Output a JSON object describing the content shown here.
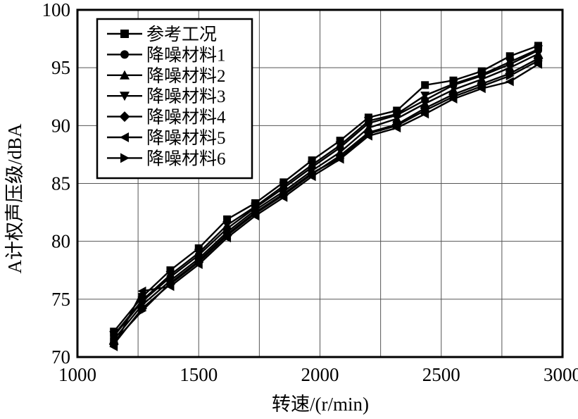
{
  "figure": {
    "background": "#ffffff",
    "ink_color": "#000000",
    "grid_color": "#555555"
  },
  "chart_data": {
    "type": "line",
    "title": "",
    "xlabel": "转速/(r/min)",
    "ylabel": "A计权声压级/dBA",
    "xlim": [
      1000,
      3000
    ],
    "ylim": [
      70,
      100
    ],
    "x_tick_labels": [
      1000,
      1500,
      2000,
      2500,
      3000
    ],
    "x_gridlines": [
      1250,
      1500,
      1750,
      2000,
      2250,
      2500,
      2750
    ],
    "y_ticks": [
      70,
      75,
      80,
      85,
      90,
      95,
      100
    ],
    "grid": "on",
    "legend_position": "top-left-inside",
    "x": [
      1150,
      1267,
      1383,
      1500,
      1617,
      1733,
      1850,
      1967,
      2083,
      2200,
      2317,
      2433,
      2550,
      2667,
      2783,
      2900
    ],
    "series": [
      {
        "name": "参考工况",
        "marker": "square",
        "values": [
          72.2,
          75.2,
          77.5,
          79.4,
          81.9,
          83.3,
          85.1,
          87.0,
          88.7,
          90.7,
          91.3,
          93.5,
          93.9,
          94.7,
          96.0,
          96.9
        ]
      },
      {
        "name": "降噪材料1",
        "marker": "circle",
        "values": [
          71.8,
          74.8,
          76.9,
          78.8,
          81.1,
          82.9,
          84.6,
          86.4,
          88.1,
          90.2,
          90.9,
          92.2,
          93.5,
          94.3,
          95.3,
          96.5
        ]
      },
      {
        "name": "降噪材料2",
        "marker": "triangle-up",
        "values": [
          71.5,
          74.5,
          76.6,
          78.5,
          80.8,
          82.7,
          84.3,
          86.1,
          87.7,
          89.8,
          90.6,
          91.9,
          93.1,
          94.0,
          95.0,
          96.2
        ]
      },
      {
        "name": "降噪材料3",
        "marker": "triangle-down",
        "values": [
          71.9,
          74.9,
          77.1,
          79.0,
          81.4,
          83.0,
          84.8,
          86.6,
          88.3,
          90.4,
          91.0,
          92.6,
          93.6,
          94.4,
          95.5,
          96.6
        ]
      },
      {
        "name": "降噪材料4",
        "marker": "diamond",
        "values": [
          71.1,
          74.2,
          76.3,
          78.2,
          80.5,
          82.4,
          84.0,
          85.8,
          87.4,
          89.4,
          90.1,
          91.5,
          92.7,
          93.6,
          94.5,
          95.8
        ]
      },
      {
        "name": "降噪材料5",
        "marker": "triangle-left",
        "values": [
          70.9,
          75.7,
          76.1,
          78.0,
          80.3,
          82.2,
          83.8,
          85.6,
          87.1,
          89.1,
          89.8,
          91.0,
          92.3,
          93.2,
          93.8,
          95.3
        ]
      },
      {
        "name": "降噪材料6",
        "marker": "triangle-right",
        "values": [
          71.3,
          74.0,
          76.4,
          78.3,
          80.6,
          82.5,
          84.1,
          85.9,
          87.2,
          89.3,
          90.0,
          91.3,
          92.5,
          93.4,
          94.3,
          95.6
        ]
      }
    ]
  }
}
